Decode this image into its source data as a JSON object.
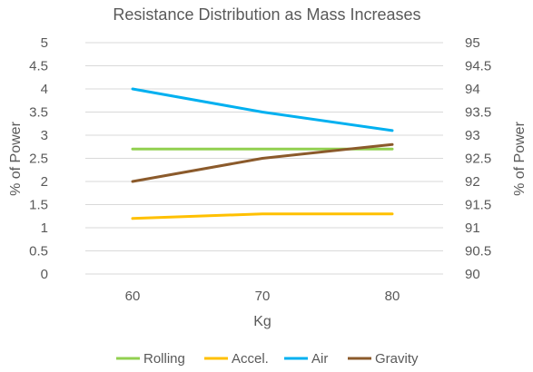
{
  "chart_data": {
    "type": "line",
    "title": "Resistance Distribution as Mass Increases",
    "xlabel": "Kg",
    "ylabel": "% of Power",
    "y2label": "% of Power",
    "categories": [
      "60",
      "70",
      "80"
    ],
    "ylim": [
      0,
      5
    ],
    "yticks": [
      "0",
      "0.5",
      "1",
      "1.5",
      "2",
      "2.5",
      "3",
      "3.5",
      "4",
      "4.5",
      "5"
    ],
    "y2lim": [
      90,
      95
    ],
    "y2ticks": [
      "90",
      "90.5",
      "91",
      "91.5",
      "92",
      "92.5",
      "93",
      "93.5",
      "94",
      "94.5",
      "95"
    ],
    "grid": true,
    "legend": "bottom",
    "series": [
      {
        "name": "Rolling",
        "axis": "left",
        "color": "#92d050",
        "values": [
          2.7,
          2.7,
          2.7
        ]
      },
      {
        "name": "Accel.",
        "axis": "left",
        "color": "#ffc000",
        "values": [
          1.2,
          1.3,
          1.3
        ]
      },
      {
        "name": "Air",
        "axis": "left",
        "color": "#00b0f0",
        "values": [
          4.0,
          3.5,
          3.1
        ]
      },
      {
        "name": "Gravity",
        "axis": "right",
        "color": "#8b5a2b",
        "values": [
          92.0,
          92.5,
          92.8
        ]
      }
    ]
  }
}
